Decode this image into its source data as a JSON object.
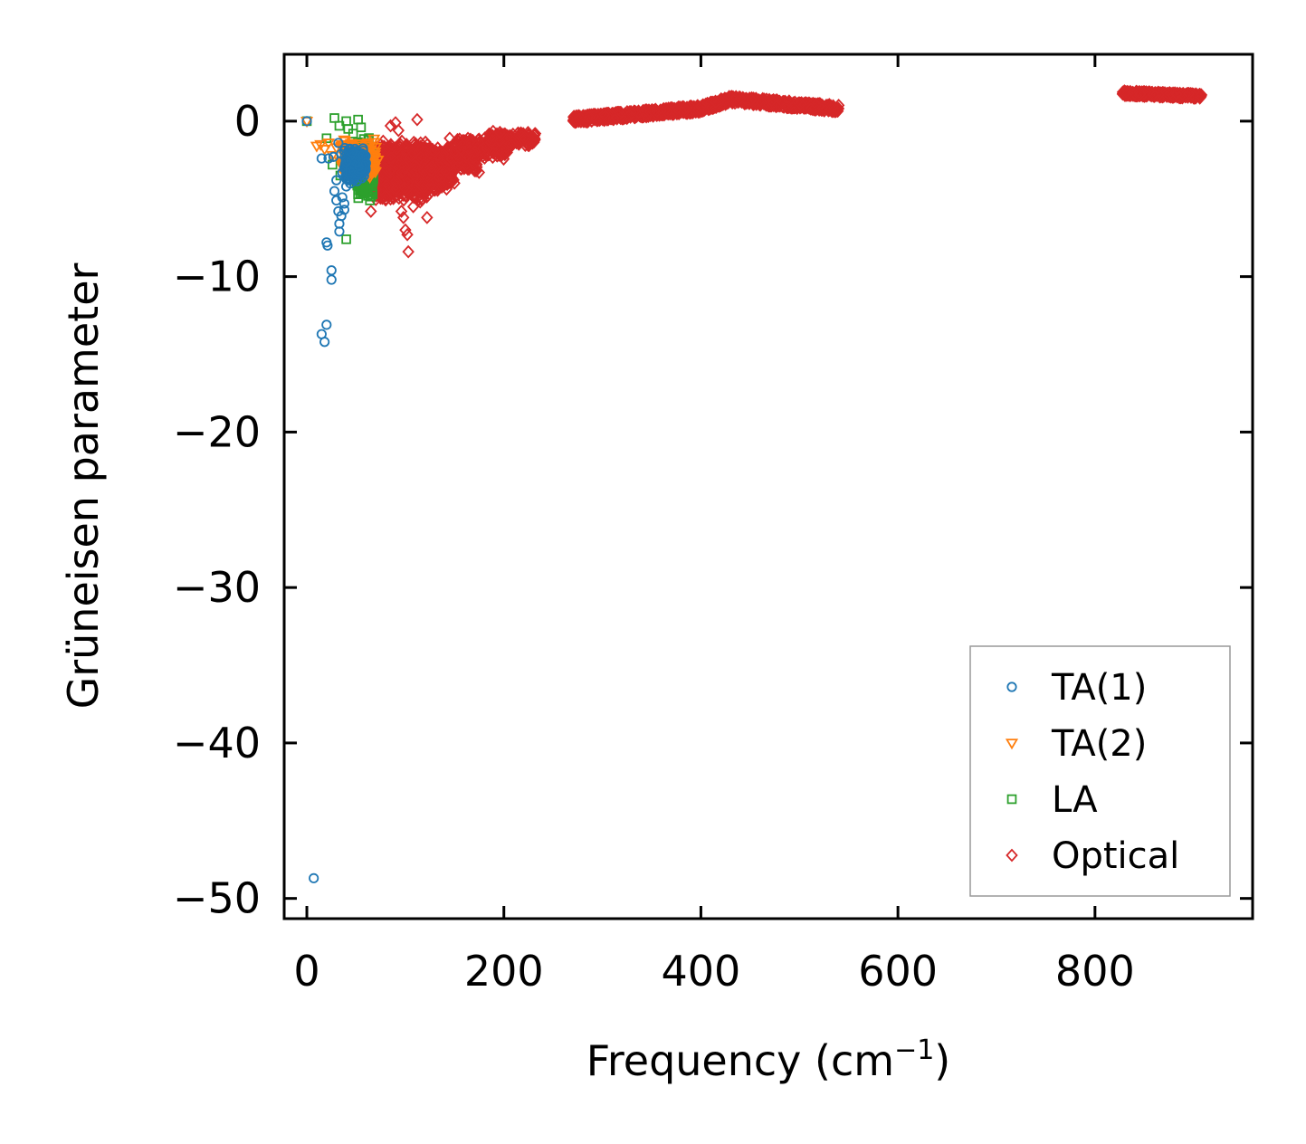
{
  "chart_data": {
    "type": "scatter",
    "title": "",
    "xlabel": "Frequency (cm",
    "xlabel_superscript": "−1",
    "xlabel_close": ")",
    "ylabel": "Grüneisen parameter",
    "xlim": [
      -23,
      960
    ],
    "ylim": [
      -51.3,
      4.3
    ],
    "x_ticks": [
      0,
      200,
      400,
      600,
      800
    ],
    "x_tick_labels": [
      "0",
      "200",
      "400",
      "600",
      "800"
    ],
    "y_ticks": [
      0,
      -10,
      -20,
      -30,
      -40,
      -50
    ],
    "y_tick_labels": [
      "0",
      "−10",
      "−20",
      "−30",
      "−40",
      "−50"
    ],
    "legend_position": "lower-right",
    "series": [
      {
        "name": "TA(1)",
        "color": "#1f77b4",
        "marker": "circle",
        "points": [
          [
            0,
            0
          ],
          [
            7,
            -48.7
          ],
          [
            15,
            -13.7
          ],
          [
            18,
            -14.2
          ],
          [
            20,
            -13.1
          ],
          [
            20,
            -7.8
          ],
          [
            21,
            -8.0
          ],
          [
            25,
            -9.6
          ],
          [
            25,
            -10.2
          ],
          [
            15,
            -2.4
          ],
          [
            22,
            -2.4
          ],
          [
            27,
            -2.3
          ],
          [
            28,
            -4.5
          ],
          [
            30,
            -3.8
          ],
          [
            30,
            -5.1
          ],
          [
            32,
            -5.8
          ],
          [
            33,
            -6.6
          ],
          [
            33,
            -7.1
          ],
          [
            35,
            -6.1
          ],
          [
            36,
            -4.9
          ],
          [
            38,
            -5.3
          ],
          [
            38,
            -5.7
          ],
          [
            40,
            -4.2
          ],
          [
            42,
            -3.5
          ],
          [
            44,
            -3.0
          ],
          [
            45,
            -2.5
          ],
          [
            47,
            -2.8
          ],
          [
            48,
            -3.2
          ],
          [
            50,
            -2.6
          ],
          [
            52,
            -3.4
          ],
          [
            53,
            -2.9
          ],
          [
            55,
            -3.1
          ],
          [
            57,
            -2.2
          ],
          [
            60,
            -2.7
          ],
          [
            43,
            -1.8
          ],
          [
            46,
            -2.0
          ],
          [
            35,
            -2.1
          ],
          [
            38,
            -1.9
          ],
          [
            40,
            -2.6
          ],
          [
            42,
            -3.8
          ],
          [
            44,
            -4.0
          ],
          [
            36,
            -3.3
          ],
          [
            32,
            -1.4
          ]
        ],
        "clusters": [
          {
            "x": [
              38,
              60
            ],
            "y": [
              -4.0,
              -1.6
            ],
            "n": 180
          }
        ]
      },
      {
        "name": "TA(2)",
        "color": "#ff7f0e",
        "marker": "triangle-down",
        "points": [
          [
            0,
            0
          ],
          [
            10,
            -1.6
          ],
          [
            14,
            -1.5
          ],
          [
            18,
            -1.8
          ],
          [
            22,
            -1.4
          ],
          [
            26,
            -2.2
          ],
          [
            30,
            -1.7
          ],
          [
            34,
            -2.6
          ],
          [
            38,
            -1.2
          ],
          [
            42,
            -1.5
          ],
          [
            46,
            -2.0
          ],
          [
            50,
            -1.9
          ],
          [
            54,
            -2.4
          ],
          [
            58,
            -2.8
          ],
          [
            62,
            -1.4
          ],
          [
            66,
            -2.3
          ],
          [
            68,
            -3.0
          ],
          [
            72,
            -2.5
          ],
          [
            64,
            -3.6
          ],
          [
            60,
            -3.3
          ]
        ],
        "clusters": [
          {
            "x": [
              35,
              70
            ],
            "y": [
              -3.6,
              -1.0
            ],
            "n": 160
          }
        ]
      },
      {
        "name": "LA",
        "color": "#2ca02c",
        "marker": "square",
        "points": [
          [
            0,
            0
          ],
          [
            28,
            0.2
          ],
          [
            33,
            -0.3
          ],
          [
            40,
            0.0
          ],
          [
            42,
            -0.5
          ],
          [
            47,
            -0.8
          ],
          [
            52,
            0.1
          ],
          [
            55,
            -0.4
          ],
          [
            20,
            -1.1
          ],
          [
            26,
            -2.8
          ],
          [
            34,
            -3.5
          ],
          [
            40,
            -7.6
          ],
          [
            58,
            -4.2
          ],
          [
            62,
            -4.8
          ],
          [
            64,
            -5.1
          ],
          [
            66,
            -4.5
          ],
          [
            60,
            -3.9
          ],
          [
            56,
            -1.4
          ]
        ],
        "clusters": [
          {
            "x": [
              50,
              68
            ],
            "y": [
              -5.0,
              -1.0
            ],
            "n": 170
          }
        ]
      },
      {
        "name": "Optical",
        "color": "#d62728",
        "marker": "diamond",
        "points": [
          [
            65,
            -5.8
          ],
          [
            70,
            -2.2
          ],
          [
            85,
            -0.3
          ],
          [
            90,
            -0.1
          ],
          [
            93,
            -0.6
          ],
          [
            98,
            -6.2
          ],
          [
            100,
            -7.0
          ],
          [
            102,
            -7.3
          ],
          [
            103,
            -8.4
          ],
          [
            96,
            -5.8
          ],
          [
            112,
            0.1
          ],
          [
            115,
            -5.2
          ],
          [
            122,
            -6.2
          ],
          [
            145,
            -1.1
          ],
          [
            80,
            -4.8
          ],
          [
            108,
            -5.5
          ]
        ],
        "clusters": [
          {
            "x": [
              70,
              125
            ],
            "y": [
              -5.2,
              -1.2
            ],
            "n": 900
          },
          {
            "x": [
              95,
              150
            ],
            "y": [
              -4.6,
              -1.8
            ],
            "n": 320
          },
          {
            "x": [
              125,
              175
            ],
            "y": [
              -3.4,
              -1.4
            ],
            "n": 240
          },
          {
            "x": [
              150,
              205
            ],
            "y": [
              -2.5,
              -1.0
            ],
            "n": 200
          },
          {
            "x": [
              185,
              232
            ],
            "y": [
              -1.7,
              -0.6
            ],
            "n": 160
          }
        ],
        "bands": [
          {
            "x": [
              270,
              400
            ],
            "y_start": 0.1,
            "y_end": 0.8,
            "spread": 0.45,
            "n": 500
          },
          {
            "x": [
              400,
              430
            ],
            "y_start": 0.8,
            "y_end": 1.4,
            "spread": 0.45,
            "n": 140
          },
          {
            "x": [
              430,
              540
            ],
            "y_start": 1.4,
            "y_end": 0.8,
            "spread": 0.45,
            "n": 420
          },
          {
            "x": [
              828,
              908
            ],
            "y_start": 1.8,
            "y_end": 1.6,
            "spread": 0.3,
            "n": 300
          }
        ]
      }
    ]
  }
}
